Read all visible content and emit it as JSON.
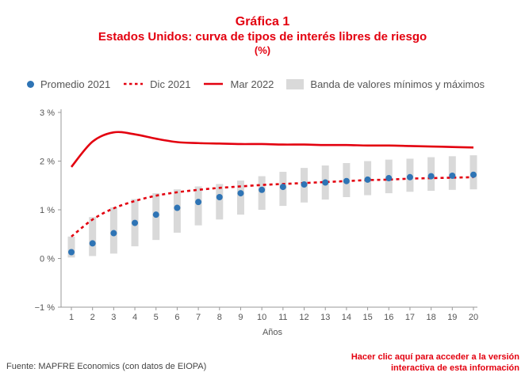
{
  "title": {
    "line1": "Gráfica 1",
    "line2": "Estados Unidos: curva de tipos de interés libres de riesgo",
    "line3": "(%)"
  },
  "legend": {
    "promedio": "Promedio 2021",
    "dic": "Dic 2021",
    "mar": "Mar 2022",
    "banda": "Banda de valores mínimos y máximos"
  },
  "colors": {
    "red": "#e3000f",
    "blue": "#2e74b5",
    "band": "#d9d9d9",
    "axis": "#999999"
  },
  "chart_data": {
    "type": "line",
    "xlabel": "Años",
    "ylabel": "",
    "x": [
      1,
      2,
      3,
      4,
      5,
      6,
      7,
      8,
      9,
      10,
      11,
      12,
      13,
      14,
      15,
      16,
      17,
      18,
      19,
      20
    ],
    "ylim": [
      -1,
      3
    ],
    "yticks": [
      -1,
      0,
      1,
      2,
      3
    ],
    "ytick_labels": [
      "−1 %",
      "0 %",
      "1 %",
      "2 %",
      "3 %"
    ],
    "grid": false,
    "legend_position": "top",
    "series": [
      {
        "name": "Promedio 2021",
        "kind": "scatter",
        "values": [
          0.13,
          0.31,
          0.52,
          0.73,
          0.9,
          1.04,
          1.16,
          1.26,
          1.34,
          1.41,
          1.47,
          1.52,
          1.56,
          1.59,
          1.62,
          1.65,
          1.67,
          1.69,
          1.7,
          1.72
        ]
      },
      {
        "name": "Dic 2021",
        "kind": "dashed-line",
        "values": [
          0.45,
          0.8,
          1.03,
          1.18,
          1.29,
          1.36,
          1.41,
          1.45,
          1.48,
          1.51,
          1.53,
          1.55,
          1.57,
          1.59,
          1.61,
          1.62,
          1.64,
          1.65,
          1.66,
          1.67
        ]
      },
      {
        "name": "Mar 2022",
        "kind": "line",
        "values": [
          1.88,
          2.4,
          2.59,
          2.55,
          2.46,
          2.39,
          2.37,
          2.36,
          2.35,
          2.35,
          2.34,
          2.34,
          2.33,
          2.33,
          2.32,
          2.32,
          2.31,
          2.3,
          2.29,
          2.28
        ]
      },
      {
        "name": "Banda de valores mínimos y máximos",
        "kind": "band",
        "min": [
          0.02,
          0.05,
          0.1,
          0.25,
          0.38,
          0.53,
          0.68,
          0.8,
          0.9,
          1.0,
          1.08,
          1.15,
          1.21,
          1.26,
          1.3,
          1.34,
          1.37,
          1.39,
          1.41,
          1.42
        ],
        "max": [
          0.45,
          0.85,
          1.05,
          1.22,
          1.34,
          1.42,
          1.48,
          1.53,
          1.6,
          1.69,
          1.78,
          1.86,
          1.91,
          1.96,
          2.0,
          2.03,
          2.05,
          2.08,
          2.1,
          2.12
        ]
      }
    ]
  },
  "footer": {
    "source": "Fuente: MAPFRE Economics (con datos de EIOPA)",
    "cta_line1": "Hacer clic aquí para acceder a la versión",
    "cta_line2": "interactiva de esta información"
  }
}
